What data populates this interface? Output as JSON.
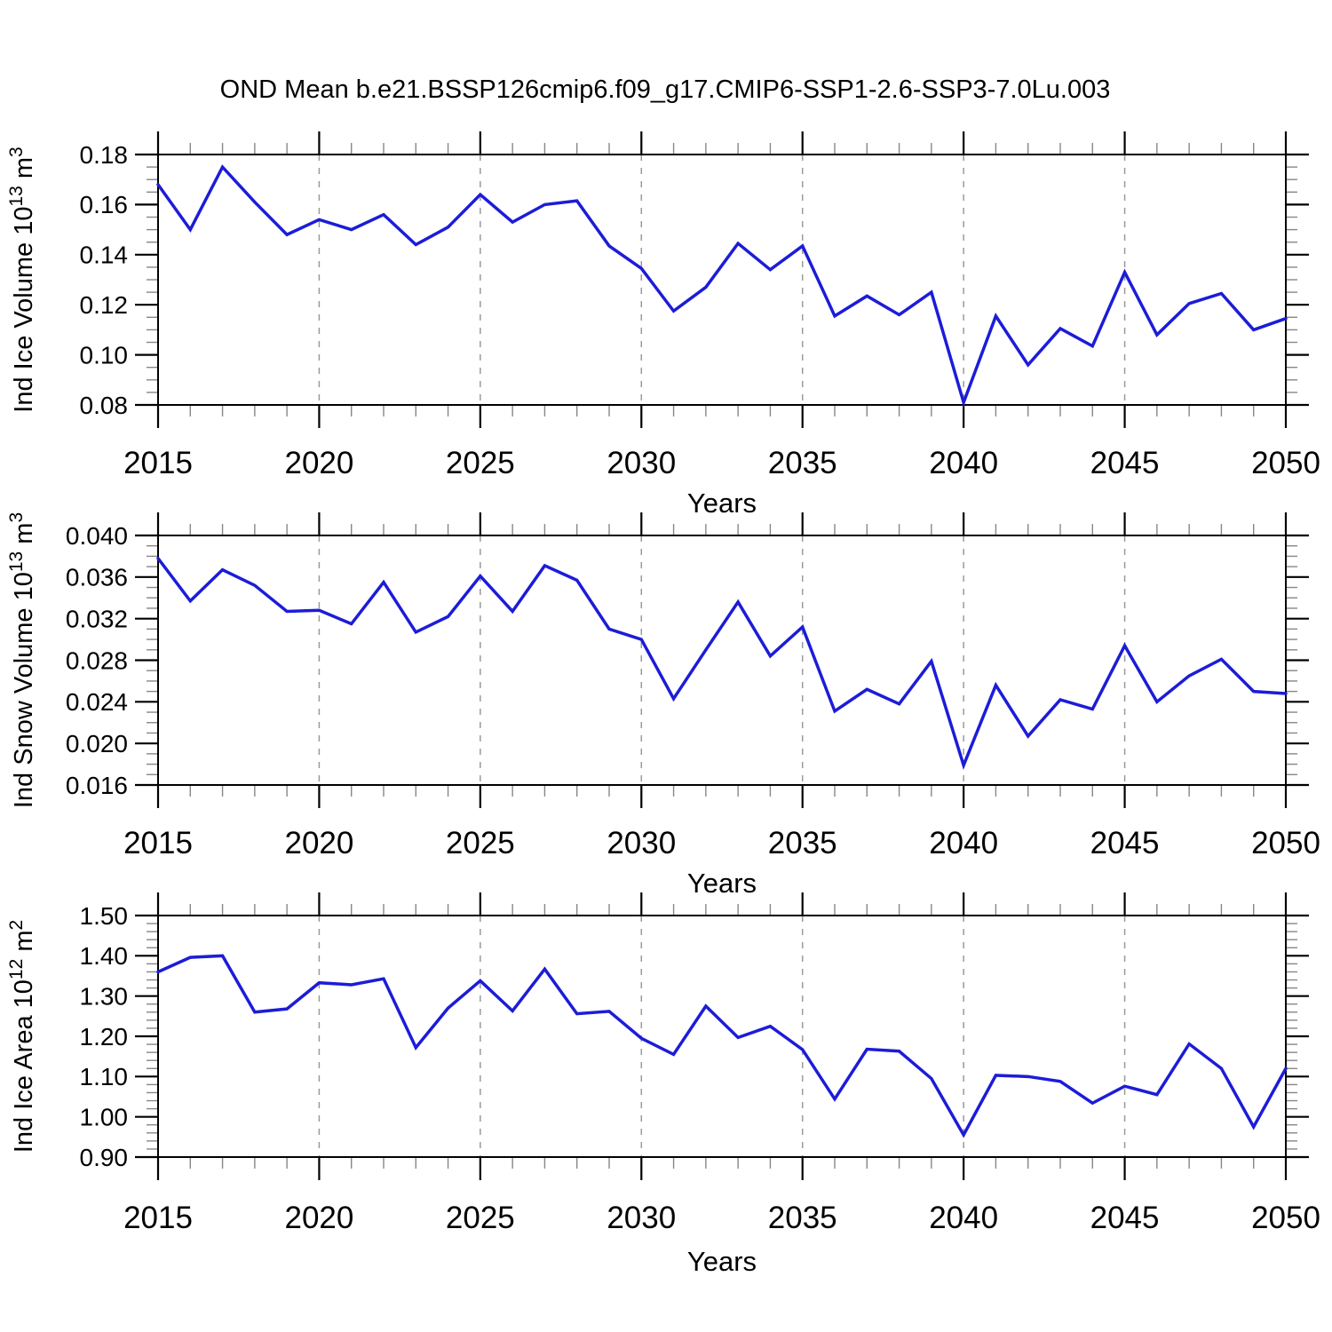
{
  "page": {
    "title": "OND Mean b.e21.BSSP126cmip6.f09_g17.CMIP6-SSP1-2.6-SSP3-7.0Lu.003"
  },
  "style": {
    "line_color": "#1c1cd8",
    "axis_color": "#000000",
    "major_tick_color": "#000000",
    "minor_tick_color": "#878787",
    "grid_color": "#9a9a9a",
    "text_color": "#000000",
    "background": "#ffffff"
  },
  "chart_data": [
    {
      "type": "line",
      "panel": 1,
      "ylabel_segments": [
        {
          "t": "Ind Ice Volume 10"
        },
        {
          "t": "13",
          "sup": true
        },
        {
          "t": " m"
        },
        {
          "t": "3",
          "sup": true
        }
      ],
      "xlabel": "Years",
      "x": [
        2015,
        2016,
        2017,
        2018,
        2019,
        2020,
        2021,
        2022,
        2023,
        2024,
        2025,
        2026,
        2027,
        2028,
        2029,
        2030,
        2031,
        2032,
        2033,
        2034,
        2035,
        2036,
        2037,
        2038,
        2039,
        2040,
        2041,
        2042,
        2043,
        2044,
        2045,
        2046,
        2047,
        2048,
        2049,
        2050
      ],
      "values": [
        0.168,
        0.15,
        0.175,
        0.161,
        0.148,
        0.154,
        0.15,
        0.156,
        0.144,
        0.151,
        0.164,
        0.153,
        0.16,
        0.1615,
        0.1435,
        0.1345,
        0.1175,
        0.127,
        0.1445,
        0.134,
        0.1435,
        0.1155,
        0.1235,
        0.116,
        0.125,
        0.081,
        0.1155,
        0.096,
        0.1105,
        0.1035,
        0.133,
        0.108,
        0.1205,
        0.1245,
        0.11,
        0.1145
      ],
      "xlim": [
        2015,
        2050
      ],
      "ylim": [
        0.08,
        0.18
      ],
      "xtick_major_values": [
        2015,
        2020,
        2025,
        2030,
        2035,
        2040,
        2045,
        2050
      ],
      "xtick_labels": [
        "2015",
        "2020",
        "2025",
        "2030",
        "2035",
        "2040",
        "2045",
        "2050"
      ],
      "xtick_minor_step": 1,
      "ytick_major_values": [
        0.18,
        0.16,
        0.14,
        0.12,
        0.1,
        0.08
      ],
      "ytick_labels": [
        "0.18",
        "0.16",
        "0.14",
        "0.12",
        "0.10",
        "0.08"
      ],
      "ytick_minor_step": 0.005,
      "gridline_x_values": [
        2020,
        2025,
        2030,
        2035,
        2040,
        2045
      ],
      "grid": "vertical-dashed",
      "legend": null
    },
    {
      "type": "line",
      "panel": 2,
      "ylabel_segments": [
        {
          "t": "Ind Snow Volume 10"
        },
        {
          "t": "13",
          "sup": true
        },
        {
          "t": " m"
        },
        {
          "t": "3",
          "sup": true
        }
      ],
      "xlabel": "Years",
      "x": [
        2015,
        2016,
        2017,
        2018,
        2019,
        2020,
        2021,
        2022,
        2023,
        2024,
        2025,
        2026,
        2027,
        2028,
        2029,
        2030,
        2031,
        2032,
        2033,
        2034,
        2035,
        2036,
        2037,
        2038,
        2039,
        2040,
        2041,
        2042,
        2043,
        2044,
        2045,
        2046,
        2047,
        2048,
        2049,
        2050
      ],
      "values": [
        0.0378,
        0.0337,
        0.0367,
        0.0352,
        0.0327,
        0.0328,
        0.0315,
        0.0355,
        0.0307,
        0.0322,
        0.0361,
        0.0327,
        0.0371,
        0.0357,
        0.031,
        0.03,
        0.0243,
        0.029,
        0.0336,
        0.0284,
        0.0312,
        0.0231,
        0.0252,
        0.0238,
        0.0279,
        0.0179,
        0.0256,
        0.0207,
        0.0242,
        0.0233,
        0.0294,
        0.024,
        0.0265,
        0.0281,
        0.025,
        0.0248
      ],
      "xlim": [
        2015,
        2050
      ],
      "ylim": [
        0.016,
        0.04
      ],
      "xtick_major_values": [
        2015,
        2020,
        2025,
        2030,
        2035,
        2040,
        2045,
        2050
      ],
      "xtick_labels": [
        "2015",
        "2020",
        "2025",
        "2030",
        "2035",
        "2040",
        "2045",
        "2050"
      ],
      "xtick_minor_step": 1,
      "ytick_major_values": [
        0.04,
        0.036,
        0.032,
        0.028,
        0.024,
        0.02,
        0.016
      ],
      "ytick_labels": [
        "0.040",
        "0.036",
        "0.032",
        "0.028",
        "0.024",
        "0.020",
        "0.016"
      ],
      "ytick_minor_step": 0.001,
      "gridline_x_values": [
        2020,
        2025,
        2030,
        2035,
        2040,
        2045
      ],
      "grid": "vertical-dashed",
      "legend": null
    },
    {
      "type": "line",
      "panel": 3,
      "ylabel_segments": [
        {
          "t": "Ind Ice Area 10"
        },
        {
          "t": "12",
          "sup": true
        },
        {
          "t": " m"
        },
        {
          "t": "2",
          "sup": true
        }
      ],
      "xlabel": "Years",
      "x": [
        2015,
        2016,
        2017,
        2018,
        2019,
        2020,
        2021,
        2022,
        2023,
        2024,
        2025,
        2026,
        2027,
        2028,
        2029,
        2030,
        2031,
        2032,
        2033,
        2034,
        2035,
        2036,
        2037,
        2038,
        2039,
        2040,
        2041,
        2042,
        2043,
        2044,
        2045,
        2046,
        2047,
        2048,
        2049,
        2050
      ],
      "values": [
        1.36,
        1.396,
        1.4,
        1.26,
        1.268,
        1.333,
        1.328,
        1.343,
        1.172,
        1.27,
        1.338,
        1.263,
        1.367,
        1.256,
        1.262,
        1.195,
        1.155,
        1.275,
        1.197,
        1.225,
        1.167,
        1.044,
        1.168,
        1.163,
        1.095,
        0.955,
        1.103,
        1.1,
        1.088,
        1.034,
        1.076,
        1.055,
        1.181,
        1.12,
        0.975,
        1.12
      ],
      "xlim": [
        2015,
        2050
      ],
      "ylim": [
        0.9,
        1.5
      ],
      "xtick_major_values": [
        2015,
        2020,
        2025,
        2030,
        2035,
        2040,
        2045,
        2050
      ],
      "xtick_labels": [
        "2015",
        "2020",
        "2025",
        "2030",
        "2035",
        "2040",
        "2045",
        "2050"
      ],
      "xtick_minor_step": 1,
      "ytick_major_values": [
        1.5,
        1.4,
        1.3,
        1.2,
        1.1,
        1.0,
        0.9
      ],
      "ytick_labels": [
        "1.50",
        "1.40",
        "1.30",
        "1.20",
        "1.10",
        "1.00",
        "0.90"
      ],
      "ytick_minor_step": 0.02,
      "gridline_x_values": [
        2020,
        2025,
        2030,
        2035,
        2040,
        2045
      ],
      "grid": "vertical-dashed",
      "legend": null
    }
  ]
}
